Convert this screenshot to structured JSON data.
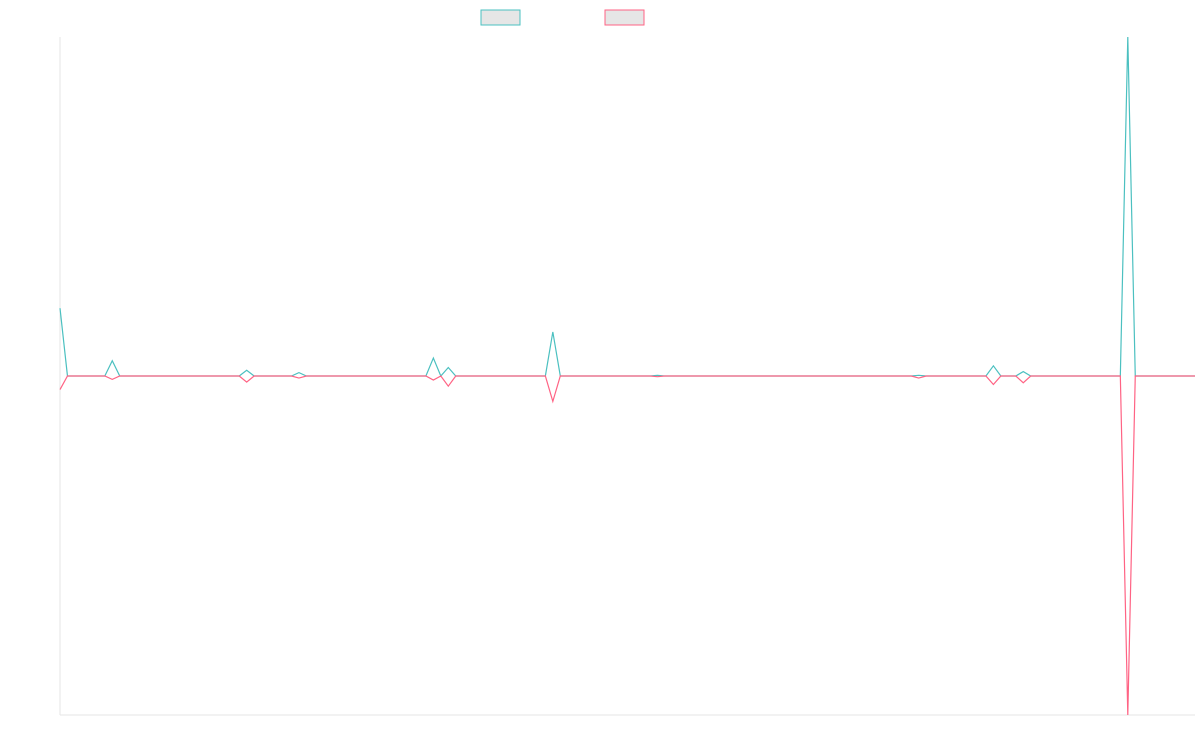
{
  "chart_data": {
    "type": "line",
    "title": "",
    "xlabel": "",
    "ylabel": "",
    "x": [
      0,
      1,
      2,
      3,
      4,
      5,
      6,
      7,
      8,
      9,
      10,
      11,
      12,
      13,
      14,
      15,
      16,
      17,
      18,
      19,
      20,
      21,
      22,
      23,
      24,
      25,
      26,
      27,
      28,
      29,
      30,
      31,
      32,
      33,
      34,
      35,
      36,
      37,
      38,
      39,
      40,
      41,
      42,
      43,
      44,
      45,
      46,
      47,
      48,
      49,
      50,
      51,
      52,
      53,
      54,
      55,
      56,
      57,
      58,
      59,
      60,
      61,
      62,
      63,
      64,
      65,
      66,
      67,
      68,
      69,
      70,
      71,
      72,
      73,
      74,
      75,
      76,
      77,
      78,
      79,
      80,
      81,
      82,
      83,
      84,
      85,
      86,
      87,
      88,
      89,
      90,
      91,
      92,
      93,
      94,
      95,
      96,
      97,
      98,
      99,
      100,
      101,
      102,
      103,
      104,
      105,
      106,
      107,
      108,
      109,
      110,
      111,
      112,
      113,
      114,
      115,
      116,
      117,
      118,
      119,
      120,
      121,
      122,
      123,
      124,
      125,
      126,
      127,
      128,
      129,
      130,
      131,
      132,
      133,
      134,
      135,
      136,
      137,
      138,
      139,
      140,
      141,
      142,
      143,
      144,
      145,
      146,
      147,
      148,
      149,
      150,
      151,
      152
    ],
    "series": [
      {
        "name": "",
        "color": "#4bc0c0",
        "values": [
          0.2,
          0,
          0,
          0,
          0,
          0,
          0,
          0.045,
          0,
          0,
          0,
          0,
          0,
          0,
          0,
          0,
          0,
          0,
          0,
          0,
          0,
          0,
          0,
          0,
          0,
          0.017,
          0,
          0,
          0,
          0,
          0,
          0,
          0.01,
          0,
          0,
          0,
          0,
          0,
          0,
          0,
          0,
          0,
          0,
          0,
          0,
          0,
          0,
          0,
          0,
          0,
          0.053,
          0,
          0.025,
          0,
          0,
          0,
          0,
          0,
          0,
          0,
          0,
          0,
          0,
          0,
          0,
          0,
          0.13,
          0,
          0,
          0,
          0,
          0,
          0,
          0,
          0,
          0,
          0,
          0,
          0,
          0,
          0.002,
          0,
          0,
          0,
          0,
          0,
          0,
          0,
          0,
          0,
          0,
          0,
          0,
          0,
          0,
          0,
          0,
          0,
          0,
          0,
          0,
          0,
          0,
          0,
          0,
          0,
          0,
          0,
          0,
          0,
          0,
          0,
          0,
          0,
          0,
          0.002,
          0,
          0,
          0,
          0,
          0,
          0,
          0,
          0,
          0,
          0.03,
          0,
          0,
          0,
          0.013,
          0,
          0,
          0,
          0,
          0,
          0,
          0,
          0,
          0,
          0,
          0,
          0,
          0,
          1,
          0,
          0,
          0,
          0,
          0,
          0,
          0,
          0,
          0
        ]
      },
      {
        "name": "",
        "color": "#ff6384",
        "values": [
          -0.04,
          0,
          0,
          0,
          0,
          0,
          0,
          -0.01,
          0,
          0,
          0,
          0,
          0,
          0,
          0,
          0,
          0,
          0,
          0,
          0,
          0,
          0,
          0,
          0,
          0,
          -0.018,
          0,
          0,
          0,
          0,
          0,
          0,
          -0.006,
          0,
          0,
          0,
          0,
          0,
          0,
          0,
          0,
          0,
          0,
          0,
          0,
          0,
          0,
          0,
          0,
          0,
          -0.012,
          0,
          -0.03,
          0,
          0,
          0,
          0,
          0,
          0,
          0,
          0,
          0,
          0,
          0,
          0,
          0,
          -0.075,
          0,
          0,
          0,
          0,
          0,
          0,
          0,
          0,
          0,
          0,
          0,
          0,
          0,
          -0.002,
          0,
          0,
          0,
          0,
          0,
          0,
          0,
          0,
          0,
          0,
          0,
          0,
          0,
          0,
          0,
          0,
          0,
          0,
          0,
          0,
          0,
          0,
          0,
          0,
          0,
          0,
          0,
          0,
          0,
          0,
          0,
          0,
          0,
          0,
          -0.006,
          0,
          0,
          0,
          0,
          0,
          0,
          0,
          0,
          0,
          -0.025,
          0,
          0,
          0,
          -0.02,
          0,
          0,
          0,
          0,
          0,
          0,
          0,
          0,
          0,
          0,
          0,
          0,
          0,
          -1,
          0,
          0,
          0,
          0,
          0,
          0,
          0,
          0,
          0
        ]
      }
    ],
    "xlim": [
      0,
      152
    ],
    "ylim": [
      -1,
      1
    ],
    "grid": false,
    "legend": "top-center"
  }
}
